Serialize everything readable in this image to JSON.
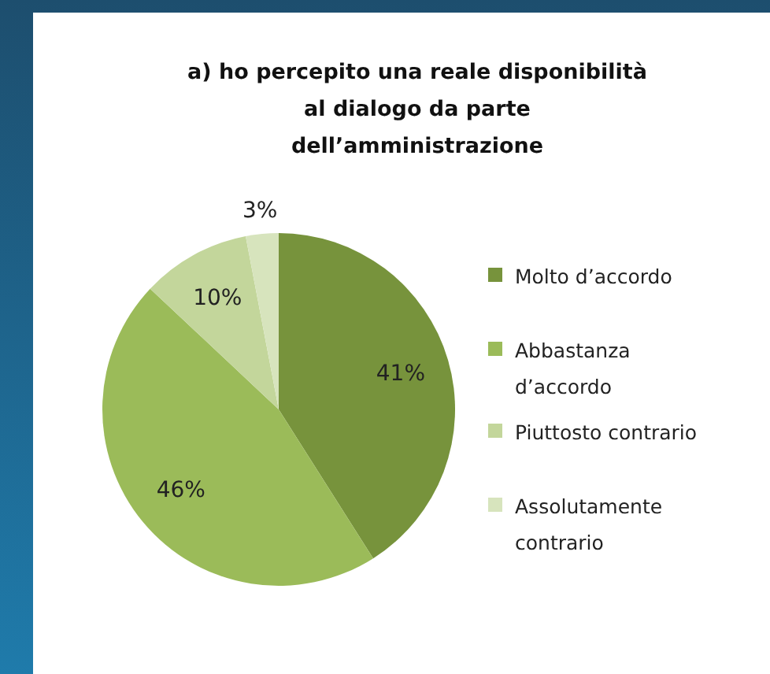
{
  "chart_data": {
    "type": "pie",
    "title": "a) ho percepito una reale disponibilità\nal dialogo da parte\ndell’amministrazione",
    "categories": [
      "Molto d’accordo",
      "Abbastanza d’accordo",
      "Piuttosto contrario",
      "Assolutamente contrario"
    ],
    "values": [
      41,
      46,
      10,
      3
    ],
    "colors": [
      "#77933c",
      "#9bbb59",
      "#c3d69b",
      "#d7e4bd"
    ],
    "value_labels": [
      "41%",
      "46%",
      "10%",
      "3%"
    ],
    "legend": "right"
  }
}
